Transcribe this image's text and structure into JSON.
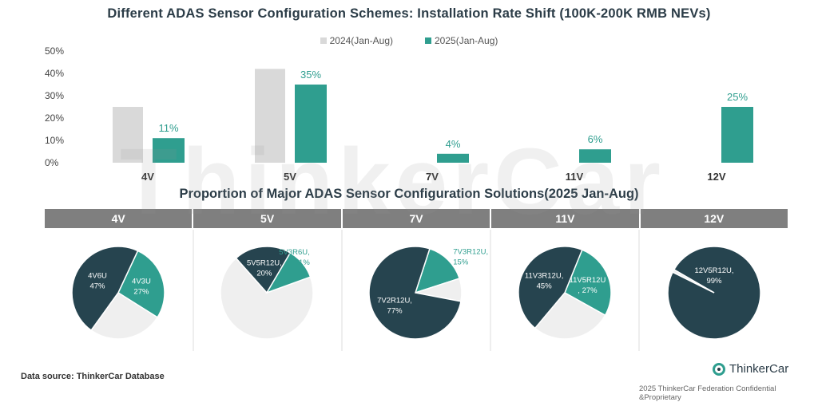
{
  "colors": {
    "prev": "#d9d9d9",
    "curr": "#2f9e8f",
    "dark": "#26444f",
    "light": "#efefef",
    "teal_label": "#2f9e8f"
  },
  "chart_data": [
    {
      "type": "bar",
      "title": "Different ADAS Sensor Configuration Schemes: Installation Rate Shift (100K-200K RMB NEVs)",
      "categories": [
        "4V",
        "5V",
        "7V",
        "11V",
        "12V"
      ],
      "series": [
        {
          "name": "2024(Jan-Aug)",
          "values": [
            25,
            42,
            0,
            0,
            0
          ],
          "data_labels": [
            "",
            "",
            "",
            "",
            ""
          ]
        },
        {
          "name": "2025(Jan-Aug)",
          "values": [
            11,
            35,
            4,
            6,
            25
          ],
          "data_labels": [
            "11%",
            "35%",
            "4%",
            "6%",
            "25%"
          ]
        }
      ],
      "yticks": [
        "0%",
        "10%",
        "20%",
        "30%",
        "40%",
        "50%"
      ],
      "ylim": [
        0,
        50
      ],
      "grid": false,
      "legend": "top"
    },
    {
      "type": "pie",
      "title": "Proportion of Major ADAS Sensor Configuration Solutions(2025 Jan-Aug)",
      "panels": [
        {
          "header": "4V",
          "slices": [
            {
              "label": "4V3U",
              "value": 27,
              "text": "27%",
              "color": "teal"
            },
            {
              "label": "",
              "value": 26,
              "text": "",
              "color": "light"
            },
            {
              "label": "4V6U",
              "value": 47,
              "text": "47%",
              "color": "dark"
            }
          ]
        },
        {
          "header": "5V",
          "slices": [
            {
              "label": "",
              "value": 69,
              "text": "",
              "color": "light"
            },
            {
              "label": "5V5R12U,",
              "value": 20,
              "text": "20%",
              "color": "dark"
            },
            {
              "label": "5V3R6U,",
              "value": 11,
              "text": "11%",
              "color": "teal"
            }
          ]
        },
        {
          "header": "7V",
          "slices": [
            {
              "label": "7V3R12U,",
              "value": 15,
              "text": "15%",
              "color": "teal"
            },
            {
              "label": "",
              "value": 8,
              "text": "",
              "color": "light"
            },
            {
              "label": "7V2R12U,",
              "value": 77,
              "text": "77%",
              "color": "dark"
            }
          ]
        },
        {
          "header": "11V",
          "slices": [
            {
              "label": "11V5R12U",
              "value": 27,
              "text": ", 27%",
              "color": "teal"
            },
            {
              "label": "",
              "value": 28,
              "text": "",
              "color": "light"
            },
            {
              "label": "11V3R12U,",
              "value": 45,
              "text": "45%",
              "color": "dark"
            }
          ]
        },
        {
          "header": "12V",
          "slices": [
            {
              "label": "12V5R12U,",
              "value": 99,
              "text": "99%",
              "color": "dark"
            },
            {
              "label": "",
              "value": 1,
              "text": "",
              "color": "light"
            }
          ]
        }
      ]
    }
  ],
  "watermark": "ThinkerCar",
  "footer": {
    "source": "Data source: ThinkerCar Database",
    "brand": "ThinkerCar",
    "copyright": "2025 ThinkerCar Federation Confidential &Proprietary"
  }
}
